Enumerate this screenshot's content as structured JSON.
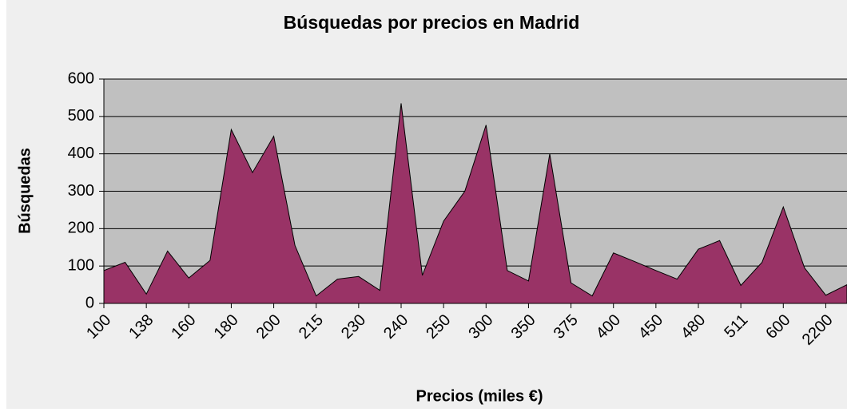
{
  "chart_data": {
    "type": "area",
    "title": "Búsquedas por precios en Madrid",
    "x_label": "Precios (miles €)",
    "y_label": "Búsquedas",
    "categories": [
      "100",
      null,
      "138",
      null,
      "160",
      null,
      "180",
      null,
      "200",
      null,
      "215",
      null,
      "230",
      null,
      "240",
      null,
      "250",
      null,
      "300",
      null,
      "350",
      null,
      "375",
      null,
      "400",
      null,
      "450",
      null,
      "480",
      null,
      "511",
      null,
      "600",
      null,
      "2200",
      null
    ],
    "values": [
      88,
      110,
      25,
      140,
      68,
      115,
      465,
      350,
      447,
      155,
      20,
      65,
      72,
      35,
      535,
      75,
      220,
      300,
      477,
      88,
      60,
      400,
      55,
      20,
      135,
      112,
      88,
      65,
      145,
      168,
      48,
      110,
      258,
      95,
      22,
      50
    ],
    "color": "#993366",
    "ylim": [
      0,
      600
    ],
    "yticks": [
      0,
      100,
      200,
      300,
      400,
      500,
      600
    ],
    "grid": true
  }
}
